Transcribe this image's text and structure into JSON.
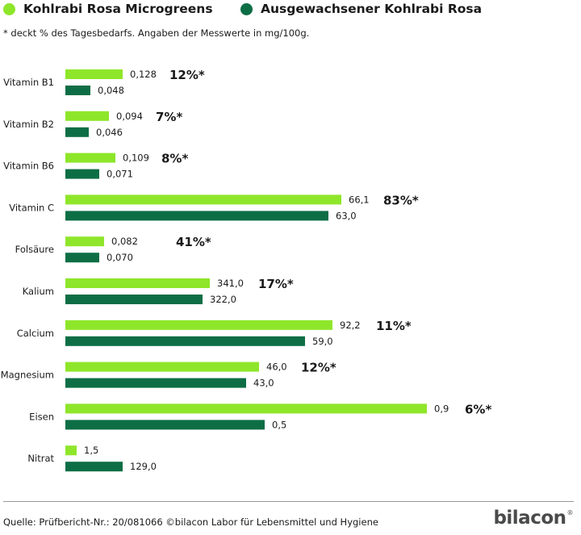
{
  "chart_data": {
    "type": "bar",
    "orientation": "horizontal",
    "title": "",
    "note": "* deckt % des Tagesbedarfs. Angaben der Messwerte in mg/100g.",
    "categories": [
      "Vitamin B1",
      "Vitamin B2",
      "Vitamin B6",
      "Vitamin C",
      "Folsäure",
      "Kalium",
      "Calcium",
      "Magnesium",
      "Eisen",
      "Nitrat"
    ],
    "series": [
      {
        "name": "Kohlrabi Rosa Microgreens",
        "color": "#8ee62a",
        "values": [
          0.128,
          0.094,
          0.109,
          66.1,
          0.082,
          341.0,
          92.2,
          46.0,
          0.9,
          1.5
        ],
        "labels": [
          "0,128",
          "0,094",
          "0,109",
          "66,1",
          "0,082",
          "341,0",
          "92,2",
          "46,0",
          "0,9",
          "1,5"
        ]
      },
      {
        "name": "Ausgewachsener Kohlrabi Rosa",
        "color": "#0d6e45",
        "values": [
          0.048,
          0.046,
          0.071,
          63.0,
          0.07,
          322.0,
          59.0,
          43.0,
          0.5,
          129.0
        ],
        "labels": [
          "0,048",
          "0,046",
          "0,071",
          "63,0",
          "0,070",
          "322,0",
          "59,0",
          "43,0",
          "0,5",
          "129,0"
        ]
      }
    ],
    "daily_percent": [
      "12%*",
      "7%*",
      "8%*",
      "83%*",
      "41%*",
      "17%*",
      "11%*",
      "12%*",
      "6%*",
      ""
    ],
    "scaling_note": "bar lengths in original are not drawn to a common numeric scale"
  },
  "legend": {
    "micro_label": "Kohlrabi Rosa Microgreens",
    "adult_label": "Ausgewachsener Kohlrabi Rosa"
  },
  "footer": {
    "source": "Quelle: Prüfbericht-Nr.: 20/081066 ©bilacon Labor für Lebensmittel und Hygiene",
    "brand": "bilacon",
    "brand_mark": "®"
  },
  "colors": {
    "micro": "#8ee62a",
    "adult": "#0d6e45"
  }
}
